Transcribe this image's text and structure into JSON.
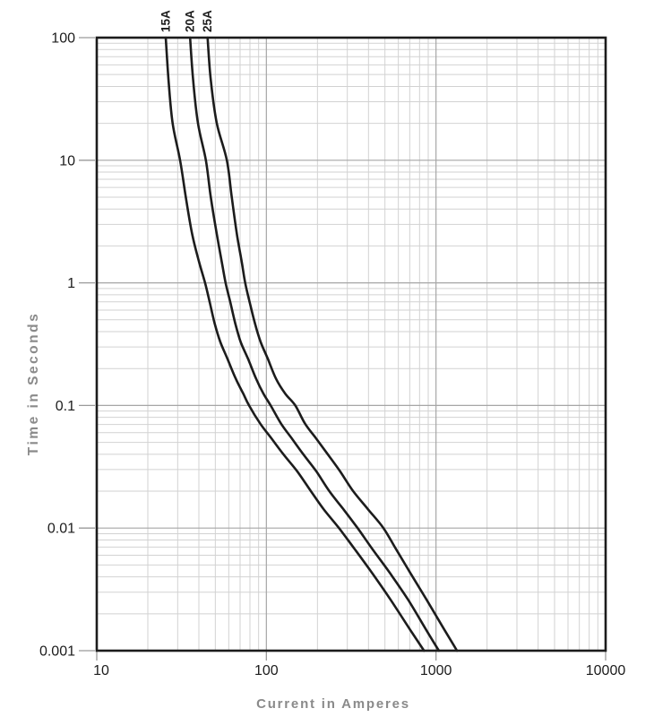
{
  "chart_data": {
    "type": "line",
    "title": "",
    "xlabel": "Current in Amperes",
    "ylabel": "Time in Seconds",
    "x_scale": "log",
    "y_scale": "log",
    "xlim": [
      10,
      10000
    ],
    "ylim": [
      0.001,
      100
    ],
    "grid": "log-log with minor gridlines at 2-9 of each decade",
    "legend": "inline rotated labels above top axis",
    "x_ticks": [
      {
        "value": 10,
        "label": "10"
      },
      {
        "value": 100,
        "label": "100"
      },
      {
        "value": 1000,
        "label": "1000"
      },
      {
        "value": 10000,
        "label": "10000"
      }
    ],
    "y_ticks": [
      {
        "value": 100,
        "label": "100"
      },
      {
        "value": 10,
        "label": "10"
      },
      {
        "value": 1,
        "label": "1"
      },
      {
        "value": 0.1,
        "label": "0.1"
      },
      {
        "value": 0.01,
        "label": "0.01"
      },
      {
        "value": 0.001,
        "label": "0.001"
      }
    ],
    "series": [
      {
        "name": "15A",
        "points": [
          [
            25.5,
            100
          ],
          [
            26.5,
            45
          ],
          [
            28,
            20
          ],
          [
            31,
            10
          ],
          [
            33.5,
            5
          ],
          [
            36.5,
            2.5
          ],
          [
            40,
            1.5
          ],
          [
            43.5,
            1
          ],
          [
            46.5,
            0.68
          ],
          [
            49.5,
            0.47
          ],
          [
            53.5,
            0.33
          ],
          [
            59,
            0.24
          ],
          [
            66,
            0.165
          ],
          [
            73,
            0.125
          ],
          [
            79,
            0.1
          ],
          [
            92,
            0.071
          ],
          [
            107,
            0.054
          ],
          [
            126,
            0.04
          ],
          [
            152,
            0.029
          ],
          [
            183,
            0.02
          ],
          [
            218,
            0.0142
          ],
          [
            268,
            0.01
          ],
          [
            330,
            0.0068
          ],
          [
            420,
            0.0043
          ],
          [
            540,
            0.0026
          ],
          [
            700,
            0.0015
          ],
          [
            850,
            0.001
          ]
        ]
      },
      {
        "name": "20A",
        "points": [
          [
            35.5,
            100
          ],
          [
            37,
            45
          ],
          [
            39.5,
            20
          ],
          [
            44,
            10
          ],
          [
            47,
            5
          ],
          [
            51,
            2.5
          ],
          [
            54.5,
            1.5
          ],
          [
            57.5,
            1
          ],
          [
            61.5,
            0.68
          ],
          [
            65.5,
            0.47
          ],
          [
            70.5,
            0.33
          ],
          [
            78,
            0.24
          ],
          [
            87,
            0.165
          ],
          [
            96,
            0.125
          ],
          [
            106,
            0.1
          ],
          [
            122,
            0.071
          ],
          [
            141,
            0.054
          ],
          [
            165,
            0.04
          ],
          [
            197,
            0.029
          ],
          [
            235,
            0.02
          ],
          [
            285,
            0.0142
          ],
          [
            345,
            0.01
          ],
          [
            420,
            0.0068
          ],
          [
            535,
            0.0043
          ],
          [
            685,
            0.0026
          ],
          [
            870,
            0.0015
          ],
          [
            1040,
            0.001
          ]
        ]
      },
      {
        "name": "25A",
        "points": [
          [
            45,
            100
          ],
          [
            47,
            45
          ],
          [
            51,
            20
          ],
          [
            58.5,
            10
          ],
          [
            62.5,
            5
          ],
          [
            67,
            2.5
          ],
          [
            71.5,
            1.5
          ],
          [
            75,
            1
          ],
          [
            80,
            0.68
          ],
          [
            85.5,
            0.47
          ],
          [
            92.5,
            0.33
          ],
          [
            102,
            0.24
          ],
          [
            114,
            0.165
          ],
          [
            129,
            0.125
          ],
          [
            148,
            0.1
          ],
          [
            169,
            0.071
          ],
          [
            196,
            0.054
          ],
          [
            230,
            0.04
          ],
          [
            272,
            0.029
          ],
          [
            325,
            0.02
          ],
          [
            398,
            0.0142
          ],
          [
            490,
            0.01
          ],
          [
            579,
            0.0068
          ],
          [
            706,
            0.0043
          ],
          [
            880,
            0.0026
          ],
          [
            1115,
            0.0015
          ],
          [
            1330,
            0.001
          ]
        ]
      }
    ]
  },
  "colors": {
    "background": "#ffffff",
    "curve": "#1c1c1c",
    "frame": "#1c1c1c",
    "grid_minor": "#d2d2d2",
    "grid_major": "#a6a6a6",
    "tick_mark": "#9a9a9a",
    "tick_label": "#1c1c1c",
    "curve_label": "#1c1c1c",
    "axis_title": "#8a8a8a"
  }
}
